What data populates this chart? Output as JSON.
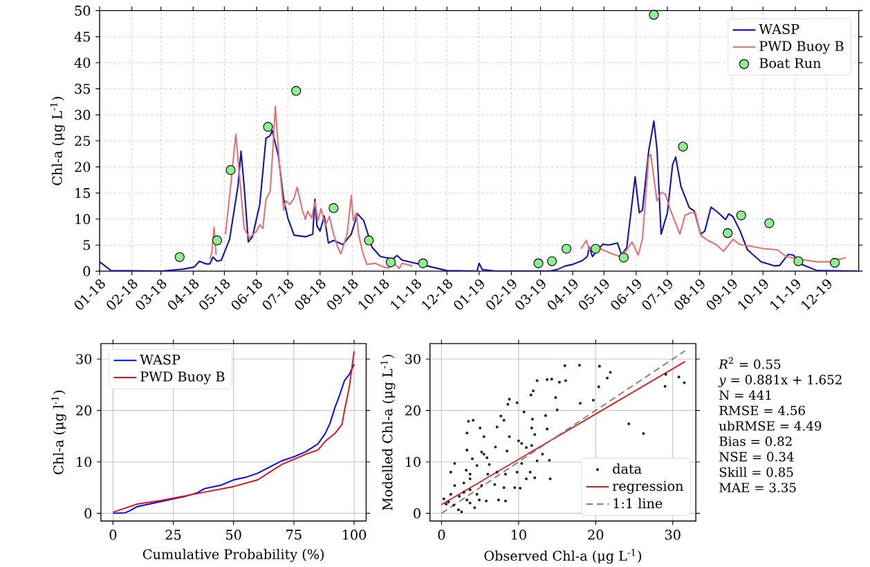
{
  "chart_data": [
    {
      "type": "line",
      "ylabel": "Chl-a (μg L$^{-1}$)",
      "xlim": [
        "2018-01-01",
        "2020-01-01"
      ],
      "ylim": [
        0,
        50
      ],
      "xticks": [
        {
          "value": "2018-01-01",
          "label": "01-18"
        },
        {
          "value": "2018-02-01",
          "label": "02-18"
        },
        {
          "value": "2018-03-01",
          "label": "03-18"
        },
        {
          "value": "2018-04-01",
          "label": "04-18"
        },
        {
          "value": "2018-05-01",
          "label": "05-18"
        },
        {
          "value": "2018-06-01",
          "label": "06-18"
        },
        {
          "value": "2018-07-01",
          "label": "07-18"
        },
        {
          "value": "2018-08-01",
          "label": "08-18"
        },
        {
          "value": "2018-09-01",
          "label": "09-18"
        },
        {
          "value": "2018-10-01",
          "label": "10-18"
        },
        {
          "value": "2018-11-01",
          "label": "11-18"
        },
        {
          "value": "2018-12-01",
          "label": "12-18"
        },
        {
          "value": "2019-01-01",
          "label": "01-19"
        },
        {
          "value": "2019-02-01",
          "label": "02-19"
        },
        {
          "value": "2019-03-01",
          "label": "03-19"
        },
        {
          "value": "2019-04-01",
          "label": "04-19"
        },
        {
          "value": "2019-05-01",
          "label": "05-19"
        },
        {
          "value": "2019-06-01",
          "label": "06-19"
        },
        {
          "value": "2019-07-01",
          "label": "07-19"
        },
        {
          "value": "2019-08-01",
          "label": "08-19"
        },
        {
          "value": "2019-09-01",
          "label": "09-19"
        },
        {
          "value": "2019-10-01",
          "label": "10-19"
        },
        {
          "value": "2019-11-01",
          "label": "11-19"
        },
        {
          "value": "2019-12-01",
          "label": "12-19"
        }
      ],
      "yticks": [
        0,
        5,
        10,
        15,
        20,
        25,
        30,
        35,
        40,
        45,
        50
      ],
      "grid": true,
      "legend": "top right",
      "series": [
        {
          "name": "WASP",
          "type": "line",
          "color": "#1414a8",
          "marker": "none",
          "x": [
            "2018-01-01",
            "2018-01-12",
            "2018-03-02",
            "2018-03-23",
            "2018-04-02",
            "2018-04-07",
            "2018-04-13",
            "2018-04-17",
            "2018-04-20",
            "2018-04-24",
            "2018-04-28",
            "2018-05-06",
            "2018-05-14",
            "2018-05-17",
            "2018-05-20",
            "2018-05-24",
            "2018-05-28",
            "2018-06-04",
            "2018-06-10",
            "2018-06-14",
            "2018-06-16",
            "2018-06-22",
            "2018-06-27",
            "2018-07-01",
            "2018-07-07",
            "2018-07-18",
            "2018-07-25",
            "2018-07-27",
            "2018-07-29",
            "2018-08-01",
            "2018-08-05",
            "2018-08-09",
            "2018-08-14",
            "2018-08-23",
            "2018-08-31",
            "2018-09-06",
            "2018-09-12",
            "2018-09-20",
            "2018-09-28",
            "2018-10-10",
            "2018-10-14",
            "2018-10-19",
            "2018-11-01",
            "2018-11-08",
            "2018-12-01",
            "2018-12-30",
            "2019-01-01",
            "2019-01-04",
            "2019-01-17",
            "2019-03-10",
            "2019-03-17",
            "2019-03-25",
            "2019-04-01",
            "2019-04-10",
            "2019-04-15",
            "2019-04-17",
            "2019-04-20",
            "2019-04-26",
            "2019-04-30",
            "2019-05-05",
            "2019-05-14",
            "2019-05-18",
            "2019-05-23",
            "2019-05-31",
            "2019-06-04",
            "2019-06-07",
            "2019-06-13",
            "2019-06-18",
            "2019-06-21",
            "2019-06-25",
            "2019-07-01",
            "2019-07-06",
            "2019-07-09",
            "2019-07-14",
            "2019-07-22",
            "2019-07-27",
            "2019-08-02",
            "2019-08-06",
            "2019-08-12",
            "2019-08-19",
            "2019-08-26",
            "2019-08-29",
            "2019-09-02",
            "2019-09-09",
            "2019-09-16",
            "2019-09-29",
            "2019-10-12",
            "2019-10-17",
            "2019-10-25",
            "2019-10-30",
            "2019-11-07",
            "2019-11-22",
            "2019-12-31"
          ],
          "values": [
            1.8,
            0.1,
            0,
            0.4,
            0.8,
            1.9,
            1.4,
            1.4,
            2.7,
            1.9,
            2.1,
            6.1,
            16.3,
            23,
            16.3,
            5.6,
            6.6,
            12.8,
            25.5,
            26,
            27,
            22,
            13.8,
            10.2,
            6.9,
            6.6,
            7.1,
            13.8,
            8.7,
            7.7,
            10.6,
            5.4,
            5.9,
            5.1,
            7.1,
            11,
            9.7,
            4.6,
            2.8,
            2.3,
            3.0,
            2.1,
            1.5,
            1.2,
            0.1,
            0,
            1.5,
            0.3,
            0,
            0,
            0.3,
            1.0,
            1.3,
            2.0,
            2.8,
            4.6,
            2.8,
            4.3,
            5.2,
            5.0,
            5.4,
            3.1,
            4.6,
            18.1,
            11.2,
            11.7,
            23,
            28.8,
            23.5,
            7.1,
            11.2,
            20.4,
            21.9,
            16.3,
            12.2,
            11.5,
            7.1,
            7.7,
            12.3,
            11.2,
            9.9,
            11.0,
            10.5,
            7.7,
            4.1,
            1.8,
            1.0,
            1.1,
            3.2,
            3.1,
            1.3,
            0.1,
            0
          ]
        },
        {
          "name": "PWD Buoy B",
          "type": "line",
          "color": "#e57373",
          "marker": "none",
          "x": [
            "2018-04-17",
            "2018-04-19",
            "2018-04-21",
            "2018-04-23",
            "2018-04-28",
            "2018-05-02",
            "2018-05-07",
            "2018-05-12",
            "2018-05-15",
            "2018-05-20",
            "2018-05-25",
            "2018-06-01",
            "2018-06-04",
            "2018-06-07",
            "2018-06-10",
            "2018-06-14",
            "2018-06-16",
            "2018-06-19",
            "2018-06-23",
            "2018-06-27",
            "2018-06-29",
            "2018-07-03",
            "2018-07-07",
            "2018-07-10",
            "2018-07-15",
            "2018-07-18",
            "2018-07-20",
            "2018-07-24",
            "2018-07-27",
            "2018-07-30",
            "2018-08-02",
            "2018-08-06",
            "2018-08-10",
            "2018-08-14",
            "2018-08-18",
            "2018-08-21",
            "2018-08-27",
            "2018-08-31",
            "2018-09-02",
            "2018-09-05",
            "2018-09-07",
            "2018-09-11",
            "2018-09-15",
            "2018-09-23",
            "2018-10-01",
            "2018-10-06",
            "2018-10-10",
            "2018-10-16",
            "2018-10-19",
            "2018-10-29",
            "2018-12-01",
            "2019-04-09",
            "2019-04-14",
            "2019-04-17",
            "2019-04-24",
            "2019-04-30",
            "2019-05-09",
            "2019-05-17",
            "2019-05-23",
            "2019-05-28",
            "2019-06-03",
            "2019-06-07",
            "2019-06-13",
            "2019-06-15",
            "2019-06-21",
            "2019-06-25",
            "2019-06-29",
            "2019-07-04",
            "2019-07-09",
            "2019-07-13",
            "2019-07-18",
            "2019-07-23",
            "2019-07-28",
            "2019-08-02",
            "2019-08-09",
            "2019-08-17",
            "2019-08-24",
            "2019-09-02",
            "2019-09-09",
            "2019-09-19",
            "2019-10-02",
            "2019-10-15",
            "2019-10-23",
            "2019-11-04",
            "2019-11-22",
            "2019-12-05",
            "2019-12-20"
          ],
          "values": [
            2.3,
            3.6,
            8.4,
            3.1,
            null,
            7.1,
            16.3,
            26.3,
            19.4,
            8.2,
            6.4,
            7.7,
            8.9,
            8.2,
            13.8,
            15.3,
            21.4,
            31.6,
            20.4,
            11.7,
            13.5,
            12.8,
            14,
            16.1,
            11.7,
            9.9,
            11.5,
            10.2,
            13.3,
            9.7,
            12,
            8.7,
            10.5,
            7.1,
            4.6,
            3.3,
            7.1,
            14.5,
            9.7,
            11.2,
            7.1,
            3.6,
            1.3,
            1.5,
            0.8,
            0.6,
            1.8,
            0.5,
            1.5,
            1.0,
            null,
            4.3,
            5.9,
            4.1,
            4.6,
            4.1,
            3.3,
            2.8,
            4.1,
            5.6,
            3.1,
            6.1,
            21.9,
            22.4,
            13.5,
            15.1,
            14.8,
            11.7,
            9.2,
            7.1,
            10.7,
            11.2,
            11.2,
            6.9,
            5.9,
            5.1,
            3.8,
            6.1,
            5.1,
            4.8,
            4.3,
            4.1,
            2.8,
            2.3,
            1.8,
            1.8,
            2.6
          ]
        },
        {
          "name": "Boat Run",
          "type": "scatter",
          "color": "#90ee90",
          "marker": "circle",
          "x": [
            "2018-03-19",
            "2018-04-24",
            "2018-05-07",
            "2018-06-12",
            "2018-07-09",
            "2018-08-14",
            "2018-09-17",
            "2018-10-08",
            "2018-11-08",
            "2019-02-27",
            "2019-03-12",
            "2019-03-26",
            "2019-04-23",
            "2019-05-20",
            "2019-06-18",
            "2019-07-16",
            "2019-08-28",
            "2019-09-10",
            "2019-10-07",
            "2019-11-04",
            "2019-12-09"
          ],
          "values": [
            2.7,
            5.9,
            19.4,
            27.7,
            34.6,
            12.1,
            5.9,
            1.7,
            1.5,
            1.5,
            1.9,
            4.3,
            4.3,
            2.6,
            49.2,
            23.9,
            7.3,
            10.7,
            9.2,
            1.9,
            1.6
          ]
        }
      ]
    },
    {
      "type": "line",
      "xlabel": "Cumulative Probability (%)",
      "ylabel": "Chl-a (μg l$^{-1}$)",
      "xlim": [
        -5,
        105
      ],
      "ylim": [
        -1.5,
        33
      ],
      "xticks": [
        0,
        25,
        50,
        75,
        100
      ],
      "yticks": [
        0,
        10,
        20,
        30
      ],
      "grid": true,
      "legend": "top left",
      "series": [
        {
          "name": "WASP",
          "color": "#0000ff",
          "x": [
            0,
            5,
            7,
            10,
            20,
            30,
            35,
            38,
            45,
            50,
            55,
            60,
            65,
            70,
            75,
            80,
            85,
            88,
            90,
            92,
            94,
            96,
            98,
            100
          ],
          "values": [
            0,
            0.1,
            0.5,
            1.3,
            2.3,
            3.3,
            4.0,
            4.8,
            5.5,
            6.5,
            7.0,
            7.8,
            9.0,
            10.2,
            11.0,
            12.0,
            13.5,
            15.5,
            17.5,
            20.5,
            23.0,
            25.8,
            27,
            29
          ]
        },
        {
          "name": "PWD Buoy B",
          "color": "#dd1111",
          "x": [
            0,
            5,
            10,
            20,
            30,
            40,
            50,
            60,
            65,
            70,
            75,
            80,
            85,
            88,
            92,
            95,
            96,
            98,
            99,
            100
          ],
          "values": [
            0.2,
            1.0,
            1.8,
            2.5,
            3.4,
            4.3,
            5.2,
            6.5,
            8.0,
            9.5,
            10.5,
            11.5,
            12.3,
            14,
            15.5,
            17.3,
            20,
            24.5,
            28,
            31.5
          ]
        }
      ]
    },
    {
      "type": "scatter",
      "xlabel": "Observed Chl-a (μg L$^{-1}$)",
      "ylabel": "Modelled Chl-a (μg L$^{-1}$)",
      "xlim": [
        -1.5,
        33
      ],
      "ylim": [
        -1.5,
        33
      ],
      "xticks": [
        0,
        10,
        20,
        30
      ],
      "yticks": [
        0,
        10,
        20,
        30
      ],
      "grid": true,
      "legend": "bottom right",
      "annotations": [
        "*R*$^{2}$ = 0.55",
        "*y* = 0.881x + 1.652",
        "N = 441",
        "RMSE = 4.56",
        "ubRMSE = 4.49",
        "Bias = 0.82",
        "NSE = 0.34",
        "Skill = 0.85",
        "MAE = 3.35"
      ],
      "series": [
        {
          "name": "data",
          "type": "scatter",
          "color": "#222222",
          "marker": "circle",
          "x": [
            16.0,
            17.9,
            20.5,
            21.9,
            21.5,
            29.1,
            30.8,
            31.5,
            29.0,
            20.4,
            12.4,
            13.7,
            14.3,
            15.3,
            16.1,
            11.9,
            11.6,
            8.8,
            8.6,
            9.8,
            14.8,
            18.0,
            19.7,
            24.3,
            26.2,
            3.5,
            4.1,
            3.3,
            5.0,
            7.2,
            7.7,
            8.1,
            10.7,
            11.8,
            13.5,
            13.7,
            15.0,
            11.7,
            5.5,
            8.8,
            10.0,
            12.1,
            3.3,
            5.2,
            5.5,
            5.9,
            4.0,
            7.0,
            8.5,
            10.4,
            11.0,
            11.7,
            13.1,
            12.4,
            14.0,
            10.4,
            11.5,
            12.1,
            14.1,
            11.0,
            9.8,
            9.5,
            10.2,
            8.3,
            7.2,
            6.2,
            4.6,
            3.2,
            1.7,
            1.2,
            1.7,
            2.9,
            3.7,
            5.2,
            6.9,
            7.4,
            8.3,
            5.8,
            4.6,
            3.7,
            2.9,
            2.3,
            3.7,
            4.3,
            3.3,
            2.2,
            1.6,
            0.9,
            0.3,
            1.2,
            2.6,
            0.6,
            4.9,
            8.1,
            6.0,
            3.7
          ],
          "values": [
            28.7,
            28.8,
            28.6,
            27.4,
            26.3,
            27.0,
            26.5,
            25.4,
            24.7,
            24.6,
            25.8,
            26.0,
            26.1,
            25.5,
            25.8,
            23.8,
            23.0,
            22.2,
            21.2,
            21.5,
            22.5,
            21.4,
            22.0,
            17.4,
            15.5,
            17.9,
            18.1,
            15.6,
            16.6,
            16.8,
            18.9,
            18.1,
            19.7,
            18.3,
            19.0,
            16.4,
            20.1,
            16.6,
            14.9,
            14.9,
            14.1,
            15.3,
            12.3,
            11.9,
            11.5,
            10.8,
            10.6,
            12.9,
            12.1,
            13.6,
            12.8,
            13.2,
            11.5,
            10.2,
            10.3,
            9.7,
            8.0,
            6.9,
            6.7,
            6.7,
            8.0,
            5.0,
            4.9,
            7.6,
            8.0,
            9.5,
            9.3,
            8.4,
            9.7,
            8.0,
            5.4,
            5.9,
            6.7,
            5.4,
            5.6,
            2.6,
            2.4,
            2.4,
            3.7,
            4.6,
            4.1,
            3.3,
            2.0,
            1.1,
            2.6,
            0.7,
            1.6,
            2.2,
            2.8,
            3.7,
            0.3,
            1.8,
            2.6,
            5.0,
            7.6,
            7.6
          ]
        },
        {
          "name": "regression",
          "type": "line",
          "color": "#d62020",
          "line_style": "solid",
          "x": [
            0,
            31.6
          ],
          "values": [
            1.7,
            29.5
          ]
        },
        {
          "name": "1:1 line",
          "type": "line",
          "color": "#808080",
          "line_style": "dashed",
          "x": [
            0,
            31.6
          ],
          "values": [
            0,
            31.6
          ]
        }
      ]
    }
  ]
}
